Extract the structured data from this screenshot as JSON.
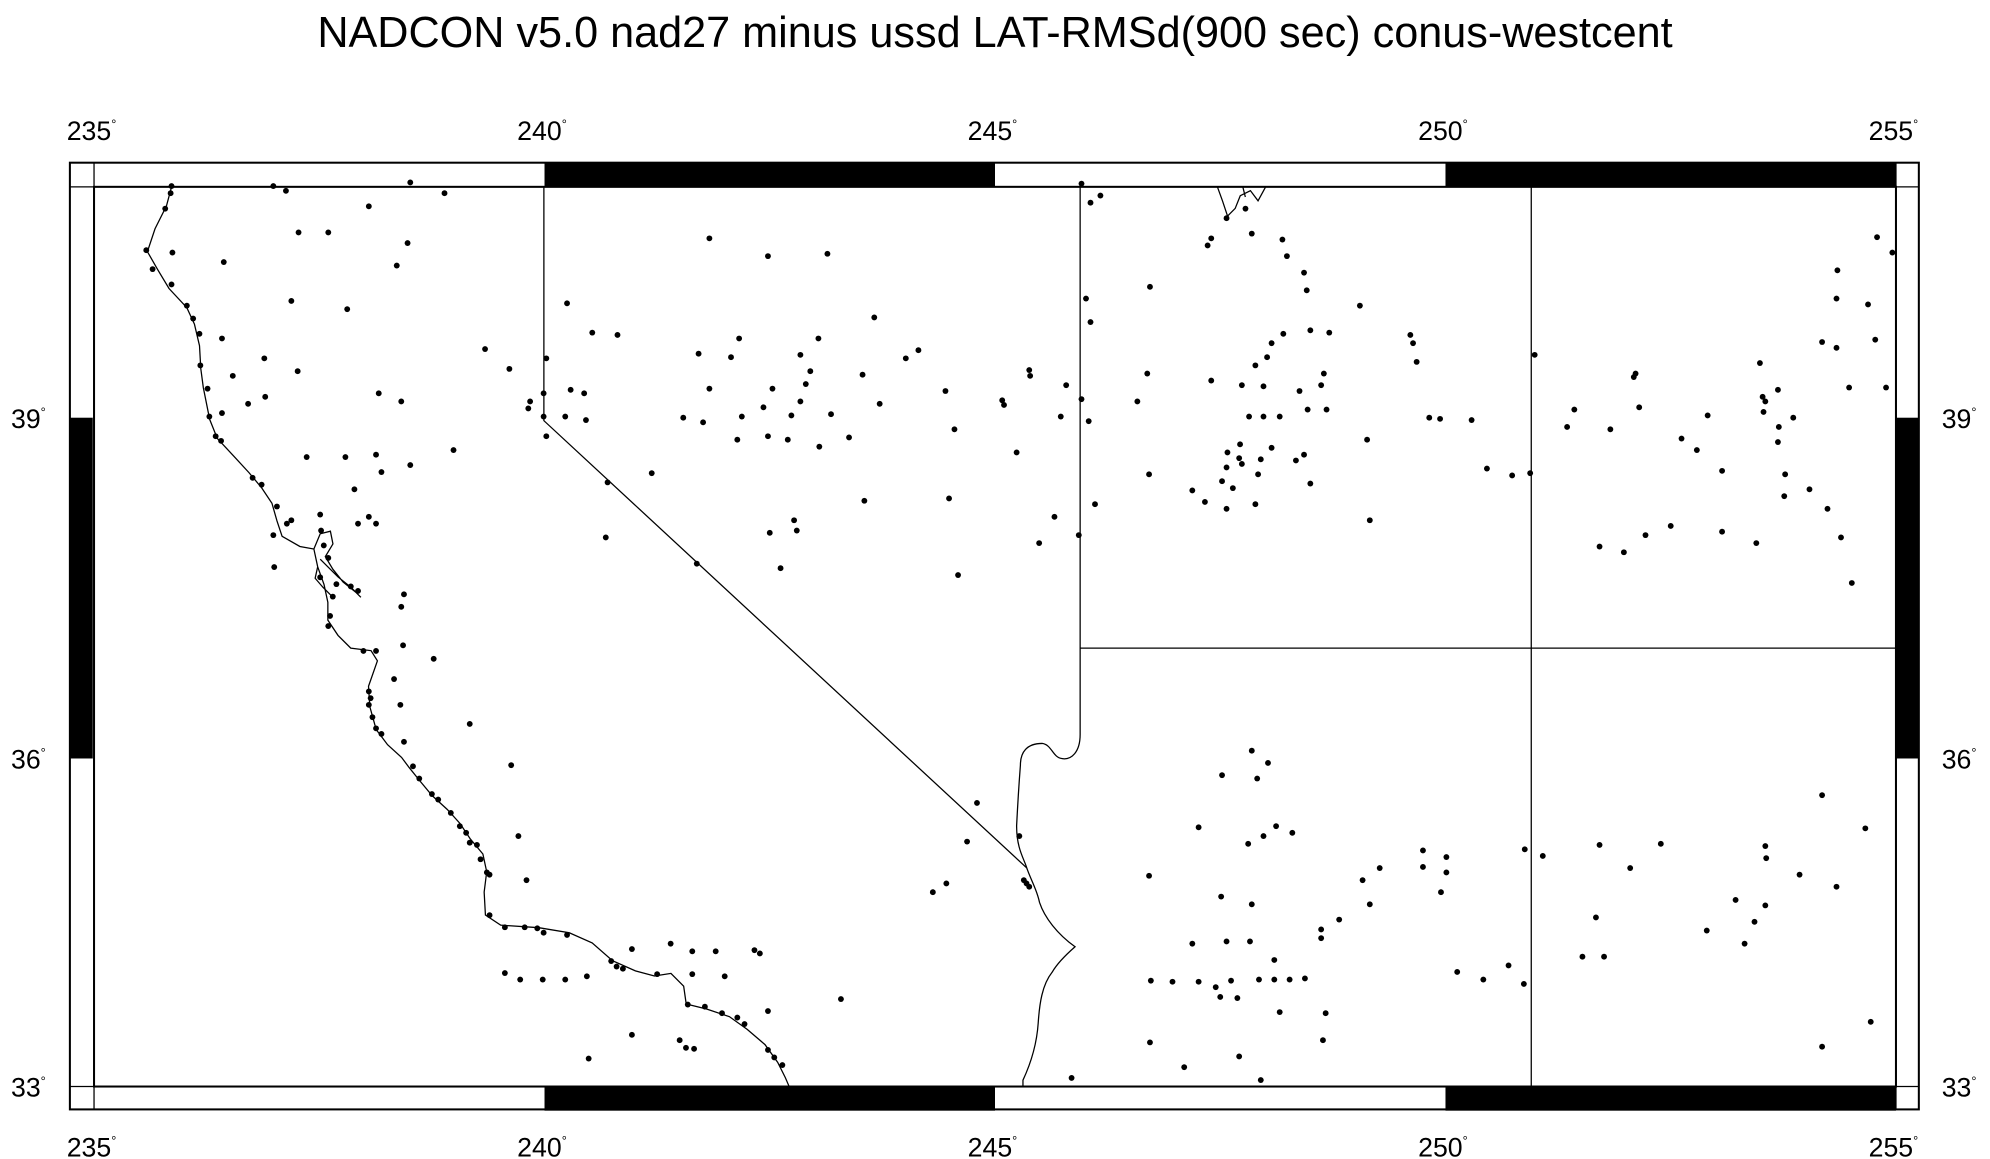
{
  "title": "NADCON v5.0 nad27 minus ussd LAT-RMSd(900 sec) conus-westcent",
  "degree_symbol": "°",
  "x_ticks": [
    {
      "value": 235,
      "label": "235"
    },
    {
      "value": 240,
      "label": "240"
    },
    {
      "value": 245,
      "label": "245"
    },
    {
      "value": 250,
      "label": "250"
    },
    {
      "value": 255,
      "label": "255"
    }
  ],
  "y_ticks": [
    {
      "value": 33,
      "label": "33"
    },
    {
      "value": 36,
      "label": "36"
    },
    {
      "value": 39,
      "label": "39"
    }
  ],
  "map": {
    "projection": "mercator",
    "lon_range": [
      235,
      255
    ],
    "lat_range": [
      33,
      40.97
    ],
    "frame_style": "alternating black/white bands",
    "point_color": "#000000",
    "stations": [
      [
        235.86,
        40.97
      ],
      [
        235.85,
        40.91
      ],
      [
        235.79,
        40.78
      ],
      [
        236.99,
        40.97
      ],
      [
        237.13,
        40.93
      ],
      [
        238.51,
        41.0
      ],
      [
        238.89,
        40.91
      ],
      [
        238.05,
        40.8
      ],
      [
        237.27,
        40.58
      ],
      [
        237.6,
        40.58
      ],
      [
        238.48,
        40.49
      ],
      [
        235.58,
        40.43
      ],
      [
        235.87,
        40.41
      ],
      [
        238.36,
        40.3
      ],
      [
        235.65,
        40.27
      ],
      [
        236.44,
        40.33
      ],
      [
        235.86,
        40.14
      ],
      [
        237.19,
        40.0
      ],
      [
        237.81,
        39.93
      ],
      [
        236.03,
        39.96
      ],
      [
        236.1,
        39.85
      ],
      [
        236.42,
        39.68
      ],
      [
        236.17,
        39.72
      ],
      [
        236.89,
        39.51
      ],
      [
        236.18,
        39.45
      ],
      [
        237.26,
        39.4
      ],
      [
        236.54,
        39.36
      ],
      [
        236.26,
        39.25
      ],
      [
        236.9,
        39.18
      ],
      [
        238.16,
        39.21
      ],
      [
        238.41,
        39.14
      ],
      [
        236.71,
        39.12
      ],
      [
        236.42,
        39.04
      ],
      [
        236.28,
        39.01
      ],
      [
        236.35,
        38.84
      ],
      [
        236.41,
        38.8
      ],
      [
        237.36,
        38.66
      ],
      [
        237.79,
        38.66
      ],
      [
        238.13,
        38.68
      ],
      [
        238.51,
        38.59
      ],
      [
        238.99,
        38.72
      ],
      [
        236.76,
        38.48
      ],
      [
        236.86,
        38.42
      ],
      [
        237.89,
        38.38
      ],
      [
        237.03,
        38.23
      ],
      [
        238.19,
        38.53
      ],
      [
        237.51,
        38.16
      ],
      [
        238.05,
        38.14
      ],
      [
        238.13,
        38.08
      ],
      [
        237.93,
        38.08
      ],
      [
        237.19,
        38.11
      ],
      [
        237.14,
        38.08
      ],
      [
        236.99,
        37.98
      ],
      [
        237.0,
        37.7
      ],
      [
        237.52,
        38.02
      ],
      [
        237.55,
        37.89
      ],
      [
        237.6,
        37.78
      ],
      [
        237.51,
        37.61
      ],
      [
        237.69,
        37.55
      ],
      [
        237.85,
        37.53
      ],
      [
        237.93,
        37.49
      ],
      [
        238.44,
        37.46
      ],
      [
        238.41,
        37.35
      ],
      [
        237.65,
        37.44
      ],
      [
        237.62,
        37.27
      ],
      [
        237.6,
        37.18
      ],
      [
        237.99,
        36.96
      ],
      [
        238.13,
        36.96
      ],
      [
        238.43,
        37.01
      ],
      [
        238.77,
        36.89
      ],
      [
        238.05,
        36.6
      ],
      [
        238.07,
        36.54
      ],
      [
        238.33,
        36.71
      ],
      [
        238.4,
        36.48
      ],
      [
        238.05,
        36.48
      ],
      [
        238.09,
        36.37
      ],
      [
        238.13,
        36.27
      ],
      [
        238.19,
        36.22
      ],
      [
        239.17,
        36.31
      ],
      [
        238.44,
        36.15
      ],
      [
        241.83,
        40.53
      ],
      [
        242.48,
        40.38
      ],
      [
        243.14,
        40.4
      ],
      [
        240.25,
        39.98
      ],
      [
        240.53,
        39.73
      ],
      [
        240.81,
        39.71
      ],
      [
        243.66,
        39.86
      ],
      [
        242.16,
        39.68
      ],
      [
        243.04,
        39.68
      ],
      [
        240.02,
        39.51
      ],
      [
        241.71,
        39.55
      ],
      [
        242.07,
        39.52
      ],
      [
        242.84,
        39.54
      ],
      [
        242.95,
        39.4
      ],
      [
        244.15,
        39.58
      ],
      [
        244.01,
        39.51
      ],
      [
        239.61,
        39.42
      ],
      [
        239.34,
        39.59
      ],
      [
        245.38,
        39.41
      ],
      [
        245.39,
        39.36
      ],
      [
        243.53,
        39.37
      ],
      [
        242.9,
        39.29
      ],
      [
        242.53,
        39.25
      ],
      [
        241.83,
        39.25
      ],
      [
        244.45,
        39.23
      ],
      [
        240.29,
        39.24
      ],
      [
        240.44,
        39.21
      ],
      [
        239.99,
        39.21
      ],
      [
        239.84,
        39.14
      ],
      [
        239.82,
        39.08
      ],
      [
        245.08,
        39.15
      ],
      [
        245.1,
        39.11
      ],
      [
        245.79,
        39.28
      ],
      [
        245.96,
        39.16
      ],
      [
        242.84,
        39.14
      ],
      [
        242.43,
        39.09
      ],
      [
        241.54,
        39.0
      ],
      [
        241.76,
        38.96
      ],
      [
        242.19,
        39.01
      ],
      [
        242.74,
        39.02
      ],
      [
        243.18,
        39.03
      ],
      [
        245.73,
        39.01
      ],
      [
        243.72,
        39.12
      ],
      [
        240.23,
        39.01
      ],
      [
        240.46,
        38.98
      ],
      [
        239.99,
        39.01
      ],
      [
        240.02,
        38.84
      ],
      [
        242.14,
        38.81
      ],
      [
        242.48,
        38.84
      ],
      [
        242.7,
        38.81
      ],
      [
        243.05,
        38.75
      ],
      [
        243.38,
        38.83
      ],
      [
        244.55,
        38.9
      ],
      [
        246.04,
        38.97
      ],
      [
        245.24,
        38.7
      ],
      [
        241.19,
        38.52
      ],
      [
        240.7,
        38.44
      ],
      [
        243.55,
        38.28
      ],
      [
        244.49,
        38.3
      ],
      [
        245.66,
        38.14
      ],
      [
        246.11,
        38.25
      ],
      [
        245.49,
        37.91
      ],
      [
        245.93,
        37.98
      ],
      [
        242.5,
        38.0
      ],
      [
        242.77,
        38.11
      ],
      [
        242.8,
        38.02
      ],
      [
        240.68,
        37.96
      ],
      [
        241.69,
        37.73
      ],
      [
        242.62,
        37.69
      ],
      [
        244.59,
        37.63
      ],
      [
        245.96,
        40.99
      ],
      [
        246.17,
        40.89
      ],
      [
        246.06,
        40.83
      ],
      [
        247.78,
        40.78
      ],
      [
        247.57,
        40.7
      ],
      [
        248.19,
        40.52
      ],
      [
        247.4,
        40.53
      ],
      [
        247.36,
        40.47
      ],
      [
        247.85,
        40.57
      ],
      [
        248.24,
        40.38
      ],
      [
        246.72,
        40.12
      ],
      [
        248.43,
        40.24
      ],
      [
        248.46,
        40.09
      ],
      [
        249.05,
        39.96
      ],
      [
        246.01,
        40.02
      ],
      [
        246.06,
        39.82
      ],
      [
        248.5,
        39.75
      ],
      [
        248.71,
        39.73
      ],
      [
        248.2,
        39.72
      ],
      [
        249.61,
        39.71
      ],
      [
        249.64,
        39.64
      ],
      [
        249.68,
        39.48
      ],
      [
        248.07,
        39.64
      ],
      [
        248.02,
        39.52
      ],
      [
        247.89,
        39.45
      ],
      [
        250.99,
        39.54
      ],
      [
        246.69,
        39.38
      ],
      [
        248.65,
        39.38
      ],
      [
        248.62,
        39.28
      ],
      [
        247.4,
        39.32
      ],
      [
        247.74,
        39.28
      ],
      [
        247.98,
        39.27
      ],
      [
        248.38,
        39.23
      ],
      [
        246.58,
        39.14
      ],
      [
        248.47,
        39.07
      ],
      [
        248.68,
        39.07
      ],
      [
        247.82,
        39.01
      ],
      [
        247.98,
        39.01
      ],
      [
        248.16,
        39.01
      ],
      [
        249.82,
        39.0
      ],
      [
        249.94,
        38.99
      ],
      [
        250.29,
        38.98
      ],
      [
        247.72,
        38.77
      ],
      [
        247.58,
        38.7
      ],
      [
        248.07,
        38.74
      ],
      [
        249.13,
        38.81
      ],
      [
        248.43,
        38.68
      ],
      [
        248.5,
        38.43
      ],
      [
        248.34,
        38.63
      ],
      [
        247.57,
        38.57
      ],
      [
        247.74,
        38.6
      ],
      [
        247.71,
        38.65
      ],
      [
        247.95,
        38.64
      ],
      [
        247.92,
        38.51
      ],
      [
        246.71,
        38.51
      ],
      [
        247.52,
        38.45
      ],
      [
        247.64,
        38.39
      ],
      [
        247.19,
        38.37
      ],
      [
        247.33,
        38.27
      ],
      [
        247.57,
        38.21
      ],
      [
        247.89,
        38.25
      ],
      [
        249.16,
        38.11
      ],
      [
        250.46,
        38.56
      ],
      [
        250.74,
        38.5
      ],
      [
        250.94,
        38.52
      ],
      [
        254.79,
        40.54
      ],
      [
        254.96,
        40.41
      ],
      [
        254.35,
        40.26
      ],
      [
        254.34,
        40.02
      ],
      [
        254.69,
        39.97
      ],
      [
        254.77,
        39.67
      ],
      [
        254.18,
        39.65
      ],
      [
        254.34,
        39.6
      ],
      [
        253.49,
        39.47
      ],
      [
        252.11,
        39.38
      ],
      [
        252.09,
        39.35
      ],
      [
        254.89,
        39.26
      ],
      [
        254.48,
        39.26
      ],
      [
        253.52,
        39.18
      ],
      [
        253.69,
        39.24
      ],
      [
        253.55,
        39.14
      ],
      [
        251.43,
        39.07
      ],
      [
        252.15,
        39.09
      ],
      [
        251.35,
        38.92
      ],
      [
        251.83,
        38.9
      ],
      [
        252.91,
        39.02
      ],
      [
        253.86,
        39.0
      ],
      [
        253.53,
        39.05
      ],
      [
        253.7,
        38.92
      ],
      [
        252.62,
        38.82
      ],
      [
        252.79,
        38.72
      ],
      [
        253.69,
        38.79
      ],
      [
        253.07,
        38.54
      ],
      [
        253.77,
        38.51
      ],
      [
        253.76,
        38.32
      ],
      [
        254.04,
        38.38
      ],
      [
        254.24,
        38.21
      ],
      [
        254.39,
        37.96
      ],
      [
        254.51,
        37.56
      ],
      [
        252.5,
        38.06
      ],
      [
        252.22,
        37.98
      ],
      [
        251.71,
        37.88
      ],
      [
        251.98,
        37.83
      ],
      [
        253.07,
        38.01
      ],
      [
        253.45,
        37.91
      ],
      [
        247.85,
        36.07
      ],
      [
        248.03,
        35.96
      ],
      [
        247.52,
        35.85
      ],
      [
        247.91,
        35.82
      ],
      [
        247.26,
        35.38
      ],
      [
        247.98,
        35.3
      ],
      [
        248.12,
        35.39
      ],
      [
        248.3,
        35.33
      ],
      [
        247.81,
        35.23
      ],
      [
        246.71,
        34.94
      ],
      [
        250.88,
        35.18
      ],
      [
        251.08,
        35.12
      ],
      [
        249.75,
        35.17
      ],
      [
        250.01,
        35.11
      ],
      [
        249.27,
        35.01
      ],
      [
        249.08,
        34.9
      ],
      [
        249.75,
        35.02
      ],
      [
        250.01,
        34.97
      ],
      [
        249.95,
        34.79
      ],
      [
        249.16,
        34.68
      ],
      [
        248.82,
        34.54
      ],
      [
        248.62,
        34.45
      ],
      [
        247.51,
        34.75
      ],
      [
        247.85,
        34.68
      ],
      [
        247.19,
        34.32
      ],
      [
        247.57,
        34.34
      ],
      [
        247.83,
        34.34
      ],
      [
        248.1,
        34.17
      ],
      [
        248.27,
        33.99
      ],
      [
        248.44,
        34.0
      ],
      [
        248.1,
        33.99
      ],
      [
        248.62,
        34.37
      ],
      [
        250.13,
        34.06
      ],
      [
        250.42,
        33.99
      ],
      [
        250.7,
        34.12
      ],
      [
        250.87,
        33.95
      ],
      [
        246.73,
        33.98
      ],
      [
        246.97,
        33.97
      ],
      [
        247.26,
        33.97
      ],
      [
        247.45,
        33.92
      ],
      [
        247.62,
        33.98
      ],
      [
        247.5,
        33.83
      ],
      [
        247.69,
        33.82
      ],
      [
        247.93,
        33.99
      ],
      [
        248.16,
        33.69
      ],
      [
        248.67,
        33.68
      ],
      [
        248.64,
        33.43
      ],
      [
        246.72,
        33.41
      ],
      [
        247.1,
        33.18
      ],
      [
        247.71,
        33.28
      ],
      [
        247.95,
        33.06
      ],
      [
        245.85,
        33.08
      ],
      [
        254.18,
        35.67
      ],
      [
        254.66,
        35.37
      ],
      [
        251.71,
        35.22
      ],
      [
        252.39,
        35.23
      ],
      [
        253.55,
        35.21
      ],
      [
        253.56,
        35.1
      ],
      [
        252.05,
        35.01
      ],
      [
        253.93,
        34.95
      ],
      [
        254.34,
        34.84
      ],
      [
        251.67,
        34.56
      ],
      [
        253.22,
        34.72
      ],
      [
        253.55,
        34.67
      ],
      [
        253.43,
        34.52
      ],
      [
        252.9,
        34.44
      ],
      [
        253.32,
        34.32
      ],
      [
        251.52,
        34.2
      ],
      [
        251.76,
        34.2
      ],
      [
        254.72,
        33.6
      ],
      [
        254.18,
        33.37
      ],
      [
        239.63,
        35.94
      ],
      [
        239.71,
        35.3
      ],
      [
        239.17,
        35.24
      ],
      [
        239.25,
        35.22
      ],
      [
        239.36,
        34.97
      ],
      [
        239.39,
        34.95
      ],
      [
        239.8,
        34.9
      ],
      [
        239.39,
        34.58
      ],
      [
        239.56,
        34.47
      ],
      [
        239.78,
        34.47
      ],
      [
        239.92,
        34.46
      ],
      [
        239.99,
        34.42
      ],
      [
        240.25,
        34.4
      ],
      [
        240.97,
        34.27
      ],
      [
        241.4,
        34.32
      ],
      [
        241.64,
        34.25
      ],
      [
        241.9,
        34.25
      ],
      [
        242.33,
        34.26
      ],
      [
        242.39,
        34.23
      ],
      [
        240.74,
        34.16
      ],
      [
        240.8,
        34.11
      ],
      [
        240.87,
        34.09
      ],
      [
        239.56,
        34.05
      ],
      [
        239.73,
        33.99
      ],
      [
        239.98,
        33.99
      ],
      [
        240.23,
        33.99
      ],
      [
        240.47,
        34.02
      ],
      [
        241.25,
        34.04
      ],
      [
        241.64,
        34.04
      ],
      [
        242.0,
        34.02
      ],
      [
        244.46,
        34.87
      ],
      [
        244.31,
        34.79
      ],
      [
        244.8,
        35.6
      ],
      [
        244.69,
        35.25
      ],
      [
        245.27,
        35.3
      ],
      [
        245.35,
        34.87
      ],
      [
        245.38,
        34.84
      ],
      [
        245.32,
        34.9
      ],
      [
        241.59,
        33.76
      ],
      [
        241.78,
        33.74
      ],
      [
        241.97,
        33.68
      ],
      [
        242.14,
        33.64
      ],
      [
        242.22,
        33.58
      ],
      [
        242.48,
        33.7
      ],
      [
        243.29,
        33.81
      ],
      [
        240.97,
        33.48
      ],
      [
        241.5,
        33.43
      ],
      [
        241.57,
        33.36
      ],
      [
        241.66,
        33.35
      ],
      [
        242.48,
        33.34
      ],
      [
        242.55,
        33.27
      ],
      [
        242.64,
        33.2
      ],
      [
        240.49,
        33.26
      ],
      [
        238.54,
        35.93
      ],
      [
        238.61,
        35.82
      ],
      [
        238.75,
        35.68
      ],
      [
        238.82,
        35.63
      ],
      [
        238.96,
        35.51
      ],
      [
        239.06,
        35.39
      ],
      [
        239.13,
        35.33
      ],
      [
        239.29,
        35.09
      ]
    ]
  }
}
